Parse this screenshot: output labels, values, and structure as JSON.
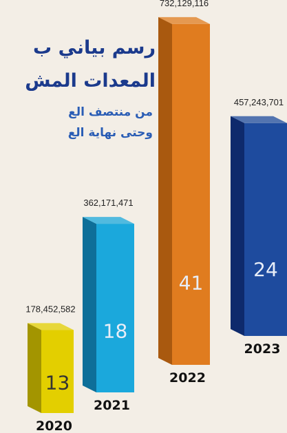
{
  "chart_data": {
    "type": "bar3d",
    "title": [
      "رسم بياني ب",
      "المعدات المش"
    ],
    "subtitle": [
      "من منتصف الع",
      "وحتى نهاية الع"
    ],
    "categories": [
      "2020",
      "2021",
      "2022",
      "2023"
    ],
    "values": [
      178452582,
      362171471,
      732129116,
      457243701
    ],
    "value_labels": [
      "178,452,582",
      "362,171,471",
      "732,129,116",
      "457,243,701"
    ],
    "counts": [
      13,
      18,
      41,
      24
    ],
    "colors": [
      "#e3cf00",
      "#1ba8dc",
      "#e07c1f",
      "#1e4b9e"
    ],
    "side_colors": [
      "#a39500",
      "#0e6f99",
      "#a9590f",
      "#0e2a6c"
    ]
  }
}
